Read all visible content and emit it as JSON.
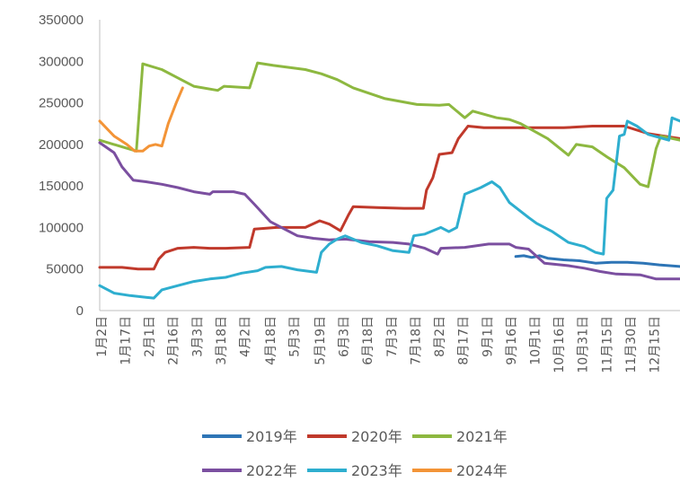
{
  "chart_data": {
    "type": "line",
    "title": "",
    "xlabel": "",
    "ylabel": "",
    "ylim": [
      0,
      350000
    ],
    "yticks": [
      0,
      50000,
      100000,
      150000,
      200000,
      250000,
      300000,
      350000
    ],
    "ytick_labels": [
      "0",
      "50000",
      "100000",
      "150000",
      "200000",
      "250000",
      "300000",
      "350000"
    ],
    "x_domain_days": [
      1,
      365
    ],
    "xtick_labels": [
      "1月2日",
      "1月17日",
      "2月1日",
      "2月16日",
      "3月3日",
      "3月18日",
      "4月2日",
      "4月18日",
      "5月3日",
      "5月19日",
      "6月3日",
      "6月18日",
      "7月3日",
      "7月18日",
      "8月2日",
      "8月17日",
      "9月1日",
      "9月16日",
      "10月1日",
      "10月16日",
      "10月31日",
      "11月15日",
      "11月30日",
      "12月15日"
    ],
    "xtick_days": [
      2,
      17,
      32,
      47,
      62,
      77,
      92,
      108,
      123,
      139,
      154,
      169,
      184,
      199,
      214,
      229,
      244,
      259,
      274,
      289,
      304,
      319,
      334,
      349
    ],
    "grid": false,
    "legend_position": "bottom",
    "series": [
      {
        "name": "2019年",
        "color": "#2E75B6",
        "points": [
          [
            262,
            65000
          ],
          [
            267,
            66000
          ],
          [
            272,
            64000
          ],
          [
            277,
            66000
          ],
          [
            282,
            63000
          ],
          [
            292,
            61000
          ],
          [
            302,
            60000
          ],
          [
            312,
            57000
          ],
          [
            322,
            58000
          ],
          [
            332,
            58000
          ],
          [
            342,
            57000
          ],
          [
            352,
            55000
          ],
          [
            365,
            53000
          ]
        ]
      },
      {
        "name": "2020年",
        "color": "#C0392B",
        "points": [
          [
            1,
            52000
          ],
          [
            15,
            52000
          ],
          [
            25,
            50000
          ],
          [
            35,
            50000
          ],
          [
            38,
            62000
          ],
          [
            42,
            70000
          ],
          [
            50,
            75000
          ],
          [
            60,
            76000
          ],
          [
            70,
            75000
          ],
          [
            80,
            75000
          ],
          [
            95,
            76000
          ],
          [
            98,
            98000
          ],
          [
            112,
            100000
          ],
          [
            130,
            100000
          ],
          [
            139,
            108000
          ],
          [
            145,
            104000
          ],
          [
            152,
            96000
          ],
          [
            157,
            115000
          ],
          [
            160,
            125000
          ],
          [
            175,
            124000
          ],
          [
            192,
            123000
          ],
          [
            204,
            123000
          ],
          [
            206,
            145000
          ],
          [
            210,
            160000
          ],
          [
            214,
            188000
          ],
          [
            222,
            190000
          ],
          [
            226,
            207000
          ],
          [
            232,
            222000
          ],
          [
            242,
            220000
          ],
          [
            260,
            220000
          ],
          [
            278,
            220000
          ],
          [
            292,
            220000
          ],
          [
            310,
            222000
          ],
          [
            330,
            222000
          ],
          [
            345,
            213000
          ],
          [
            365,
            207000
          ]
        ]
      },
      {
        "name": "2021年",
        "color": "#8DB840",
        "points": [
          [
            1,
            205000
          ],
          [
            15,
            197000
          ],
          [
            24,
            192000
          ],
          [
            28,
            297000
          ],
          [
            40,
            290000
          ],
          [
            50,
            280000
          ],
          [
            60,
            270000
          ],
          [
            75,
            265000
          ],
          [
            79,
            270000
          ],
          [
            95,
            268000
          ],
          [
            100,
            298000
          ],
          [
            110,
            295000
          ],
          [
            130,
            290000
          ],
          [
            140,
            285000
          ],
          [
            150,
            278000
          ],
          [
            160,
            268000
          ],
          [
            180,
            255000
          ],
          [
            200,
            248000
          ],
          [
            214,
            247000
          ],
          [
            220,
            248000
          ],
          [
            230,
            232000
          ],
          [
            235,
            240000
          ],
          [
            250,
            232000
          ],
          [
            258,
            230000
          ],
          [
            265,
            225000
          ],
          [
            282,
            207000
          ],
          [
            295,
            187000
          ],
          [
            300,
            200000
          ],
          [
            310,
            197000
          ],
          [
            320,
            184000
          ],
          [
            330,
            172000
          ],
          [
            340,
            152000
          ],
          [
            345,
            149000
          ],
          [
            350,
            195000
          ],
          [
            353,
            210000
          ],
          [
            365,
            205000
          ]
        ]
      },
      {
        "name": "2022年",
        "color": "#7B4FA0",
        "points": [
          [
            1,
            202000
          ],
          [
            10,
            190000
          ],
          [
            15,
            173000
          ],
          [
            22,
            157000
          ],
          [
            30,
            155000
          ],
          [
            40,
            152000
          ],
          [
            50,
            148000
          ],
          [
            60,
            143000
          ],
          [
            70,
            140000
          ],
          [
            72,
            143000
          ],
          [
            85,
            143000
          ],
          [
            92,
            140000
          ],
          [
            98,
            128000
          ],
          [
            108,
            107000
          ],
          [
            115,
            100000
          ],
          [
            125,
            90000
          ],
          [
            135,
            87000
          ],
          [
            145,
            85000
          ],
          [
            155,
            86000
          ],
          [
            170,
            83000
          ],
          [
            185,
            82000
          ],
          [
            195,
            80000
          ],
          [
            205,
            75000
          ],
          [
            213,
            68000
          ],
          [
            215,
            75000
          ],
          [
            230,
            76000
          ],
          [
            245,
            80000
          ],
          [
            258,
            80000
          ],
          [
            262,
            76000
          ],
          [
            270,
            74000
          ],
          [
            280,
            57000
          ],
          [
            295,
            54000
          ],
          [
            305,
            51000
          ],
          [
            315,
            47000
          ],
          [
            325,
            44000
          ],
          [
            340,
            43000
          ],
          [
            350,
            38000
          ],
          [
            365,
            38000
          ]
        ]
      },
      {
        "name": "2023年",
        "color": "#2EAECF",
        "points": [
          [
            1,
            30000
          ],
          [
            10,
            21000
          ],
          [
            20,
            18000
          ],
          [
            30,
            16000
          ],
          [
            35,
            15000
          ],
          [
            40,
            25000
          ],
          [
            50,
            30000
          ],
          [
            60,
            35000
          ],
          [
            70,
            38000
          ],
          [
            80,
            40000
          ],
          [
            90,
            45000
          ],
          [
            100,
            48000
          ],
          [
            105,
            52000
          ],
          [
            115,
            53000
          ],
          [
            125,
            49000
          ],
          [
            137,
            46000
          ],
          [
            140,
            70000
          ],
          [
            145,
            80000
          ],
          [
            150,
            86000
          ],
          [
            155,
            90000
          ],
          [
            165,
            82000
          ],
          [
            175,
            78000
          ],
          [
            185,
            72000
          ],
          [
            195,
            70000
          ],
          [
            198,
            90000
          ],
          [
            205,
            92000
          ],
          [
            215,
            100000
          ],
          [
            220,
            95000
          ],
          [
            225,
            100000
          ],
          [
            230,
            140000
          ],
          [
            240,
            148000
          ],
          [
            247,
            155000
          ],
          [
            252,
            148000
          ],
          [
            258,
            130000
          ],
          [
            270,
            112000
          ],
          [
            275,
            105000
          ],
          [
            285,
            95000
          ],
          [
            295,
            82000
          ],
          [
            305,
            77000
          ],
          [
            312,
            70000
          ],
          [
            317,
            68000
          ],
          [
            319,
            135000
          ],
          [
            323,
            145000
          ],
          [
            327,
            210000
          ],
          [
            330,
            212000
          ],
          [
            332,
            228000
          ],
          [
            338,
            222000
          ],
          [
            345,
            212000
          ],
          [
            358,
            205000
          ],
          [
            360,
            232000
          ],
          [
            365,
            228000
          ]
        ]
      },
      {
        "name": "2024年",
        "color": "#F39437",
        "points": [
          [
            1,
            228000
          ],
          [
            10,
            210000
          ],
          [
            18,
            200000
          ],
          [
            23,
            192000
          ],
          [
            28,
            192000
          ],
          [
            32,
            198000
          ],
          [
            36,
            200000
          ],
          [
            40,
            198000
          ],
          [
            44,
            225000
          ],
          [
            49,
            250000
          ],
          [
            53,
            268000
          ]
        ]
      }
    ]
  }
}
